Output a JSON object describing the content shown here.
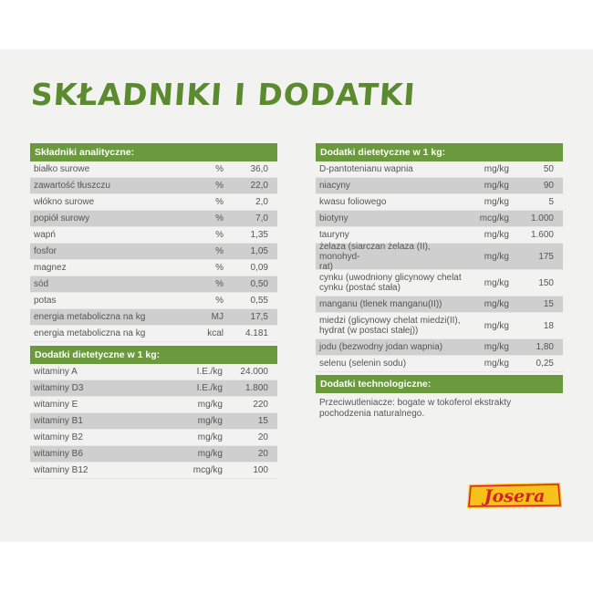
{
  "title": "SKŁADNIKI I DODATKI",
  "analytic": {
    "header": "Składniki analityczne:",
    "rows": [
      {
        "name": "białko surowe",
        "unit": "%",
        "value": "36,0"
      },
      {
        "name": "zawartość tłuszczu",
        "unit": "%",
        "value": "22,0"
      },
      {
        "name": "włókno surowe",
        "unit": "%",
        "value": "2,0"
      },
      {
        "name": "popiół surowy",
        "unit": "%",
        "value": "7,0"
      },
      {
        "name": "wapń",
        "unit": "%",
        "value": "1,35"
      },
      {
        "name": "fosfor",
        "unit": "%",
        "value": "1,05"
      },
      {
        "name": "magnez",
        "unit": "%",
        "value": "0,09"
      },
      {
        "name": "sód",
        "unit": "%",
        "value": "0,50"
      },
      {
        "name": "potas",
        "unit": "%",
        "value": "0,55"
      },
      {
        "name": "energia metaboliczna na kg",
        "unit": "MJ",
        "value": "17,5"
      },
      {
        "name": "energia metaboliczna na kg",
        "unit": "kcal",
        "value": "4.181"
      }
    ]
  },
  "vitamins": {
    "header": "Dodatki dietetyczne w 1 kg:",
    "rows": [
      {
        "name": "witaminy A",
        "unit": "I.E./kg",
        "value": "24.000"
      },
      {
        "name": "witaminy D3",
        "unit": "I.E./kg",
        "value": "1.800"
      },
      {
        "name": "witaminy E",
        "unit": "mg/kg",
        "value": "220"
      },
      {
        "name": "witaminy B1",
        "unit": "mg/kg",
        "value": "15"
      },
      {
        "name": "witaminy B2",
        "unit": "mg/kg",
        "value": "20"
      },
      {
        "name": "witaminy B6",
        "unit": "mg/kg",
        "value": "20"
      },
      {
        "name": "witaminy B12",
        "unit": "mcg/kg",
        "value": "100"
      }
    ]
  },
  "diet_right": {
    "header": "Dodatki dietetyczne w 1 kg:",
    "rows": [
      {
        "name": "D-pantotenianu wapnia",
        "unit": "mg/kg",
        "value": "50"
      },
      {
        "name": "niacyny",
        "unit": "mg/kg",
        "value": "90"
      },
      {
        "name": "kwasu foliowego",
        "unit": "mg/kg",
        "value": "5"
      },
      {
        "name": "biotyny",
        "unit": "mcg/kg",
        "value": "1.000"
      },
      {
        "name": "tauryny",
        "unit": "mg/kg",
        "value": "1.600"
      },
      {
        "name": "żelaza (siarczan żelaza (II), monohyd-\nrat)",
        "unit": "mg/kg",
        "value": "175"
      },
      {
        "name": "cynku (uwodniony glicynowy chelat\ncynku (postać stała)",
        "unit": "mg/kg",
        "value": "150"
      },
      {
        "name": "manganu (tlenek manganu(II))",
        "unit": "mg/kg",
        "value": "15"
      },
      {
        "name": "miedzi (glicynowy chelat miedzi(II),\nhydrat (w postaci stałej))",
        "unit": "mg/kg",
        "value": "18"
      },
      {
        "name": "jodu (bezwodny jodan wapnia)",
        "unit": "mg/kg",
        "value": "1,80"
      },
      {
        "name": "selenu (selenin sodu)",
        "unit": "mg/kg",
        "value": "0,25"
      }
    ]
  },
  "tech": {
    "header": "Dodatki technologiczne:",
    "text": "Przeciwutleniacze: bogate w tokoferol ekstrakty pochodzenia naturalnego."
  },
  "logo": {
    "text": "Josera",
    "color_bg": "#f6c21a",
    "color_text": "#d2232a"
  },
  "colors": {
    "accent": "#6a9a3d",
    "title": "#5b8a2f",
    "alt_row": "#cfcfcf"
  }
}
